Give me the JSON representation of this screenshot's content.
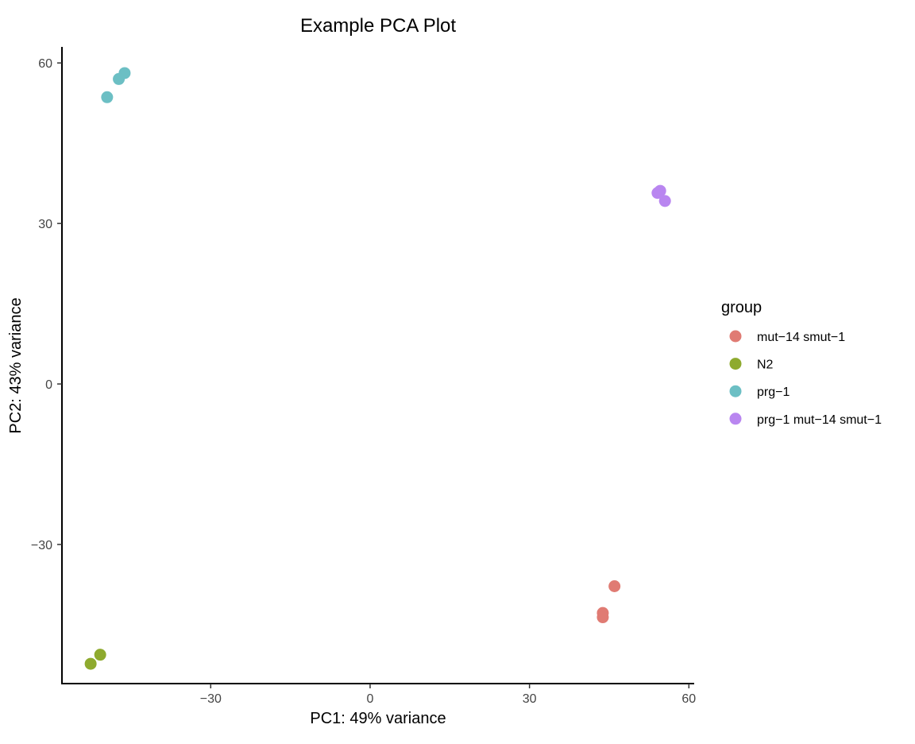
{
  "chart_data": {
    "type": "scatter",
    "title": "Example PCA Plot",
    "xlabel": "PC1: 49% variance",
    "ylabel": "PC2: 43% variance",
    "xlim": [
      -58,
      61
    ],
    "ylim": [
      -56,
      63
    ],
    "xticks": [
      -30,
      0,
      30,
      60
    ],
    "xtick_labels": [
      "−30",
      "0",
      "30",
      "60"
    ],
    "yticks": [
      -30,
      0,
      30,
      60
    ],
    "ytick_labels": [
      "−30",
      "0",
      "30",
      "60"
    ],
    "grid": false,
    "legend": {
      "title": "group",
      "position": "right"
    },
    "series": [
      {
        "name": "mut−14 smut−1",
        "color": "#E07B73",
        "points": [
          {
            "x": 46.0,
            "y": -37.8
          },
          {
            "x": 43.8,
            "y": -42.8
          },
          {
            "x": 43.8,
            "y": -43.6
          }
        ]
      },
      {
        "name": "N2",
        "color": "#8EAA2E",
        "points": [
          {
            "x": -50.8,
            "y": -50.6
          },
          {
            "x": -52.6,
            "y": -52.3
          }
        ]
      },
      {
        "name": "prg−1",
        "color": "#6CBFC4",
        "points": [
          {
            "x": -46.2,
            "y": 58.1
          },
          {
            "x": -47.3,
            "y": 57.0
          },
          {
            "x": -49.5,
            "y": 53.6
          }
        ]
      },
      {
        "name": "prg−1 mut−14 smut−1",
        "color": "#B986F0",
        "points": [
          {
            "x": 54.6,
            "y": 36.1
          },
          {
            "x": 54.1,
            "y": 35.7
          },
          {
            "x": 55.5,
            "y": 34.2
          }
        ]
      }
    ]
  }
}
